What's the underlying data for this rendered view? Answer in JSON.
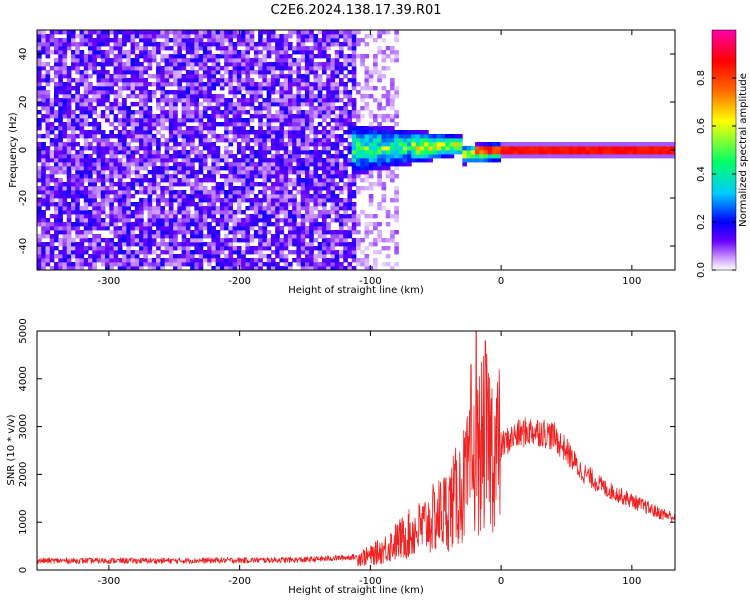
{
  "title": "C2E6.2024.138.17.39.R01",
  "chart_data": [
    {
      "type": "heatmap",
      "xlabel": "Height of straight line (km)",
      "ylabel": "Frequency (Hz)",
      "xlim": [
        -355,
        133
      ],
      "ylim": [
        -50,
        50
      ],
      "xticks": [
        -300,
        -200,
        -100,
        0,
        100
      ],
      "yticks": [
        -40,
        -20,
        0,
        20,
        40
      ],
      "colorbar": {
        "label": "Normalized spectral amplitude",
        "ticks": [
          "0.0",
          "0.2",
          "0.4",
          "0.6",
          "0.8"
        ],
        "range": [
          0,
          1
        ],
        "colormap": [
          "#ffffff",
          "#cc99ff",
          "#6a00ff",
          "#0000ff",
          "#00ccff",
          "#00ff66",
          "#ffff00",
          "#ff6600",
          "#ff0000",
          "#ff00aa"
        ]
      },
      "features": {
        "noise_region_x": [
          -355,
          -110
        ],
        "scatter_fade_x": [
          -110,
          -80
        ],
        "transition_x": [
          -115,
          0
        ],
        "signal_line_x": [
          0,
          133
        ],
        "signal_frequency": 0
      }
    },
    {
      "type": "line",
      "xlabel": "Height of straight line (km)",
      "ylabel": "SNR (10 * v/v)",
      "xlim": [
        -355,
        133
      ],
      "ylim": [
        0,
        5000
      ],
      "xticks": [
        -300,
        -200,
        -100,
        0,
        100
      ],
      "yticks": [
        0,
        1000,
        2000,
        3000,
        4000,
        5000
      ],
      "color": "#ee2222",
      "envelope": {
        "x": [
          -355,
          -300,
          -250,
          -200,
          -150,
          -110,
          -100,
          -90,
          -80,
          -70,
          -60,
          -50,
          -40,
          -30,
          -20,
          -15,
          -10,
          -5,
          0,
          10,
          20,
          30,
          40,
          50,
          60,
          80,
          100,
          120,
          133
        ],
        "y": [
          170,
          170,
          170,
          180,
          190,
          250,
          300,
          420,
          600,
          750,
          900,
          1100,
          1300,
          1700,
          2200,
          2600,
          2700,
          2500,
          2600,
          2800,
          2900,
          2900,
          2800,
          2500,
          2100,
          1700,
          1450,
          1200,
          1100
        ]
      },
      "peaks": [
        {
          "x": -19,
          "y": 5000
        },
        {
          "x": -12,
          "y": 4800
        },
        {
          "x": -23,
          "y": 4300
        }
      ]
    }
  ]
}
